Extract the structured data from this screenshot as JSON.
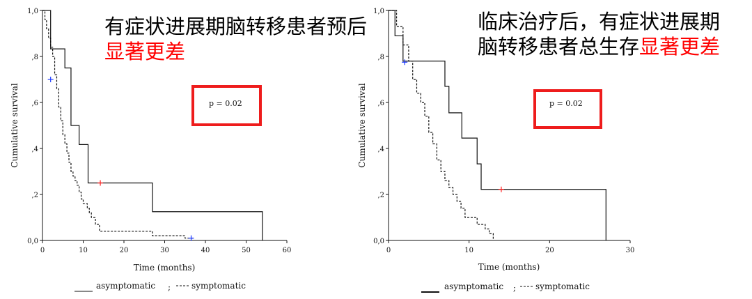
{
  "chart_data": [
    {
      "type": "line",
      "title": "有症状进展期脑转移患者预后",
      "title_highlight": "显著更差",
      "xlabel": "Time (months)",
      "ylabel": "Cumulative survival",
      "xlim": [
        0,
        60
      ],
      "ylim": [
        0,
        1
      ],
      "x_ticks": [
        "0",
        "10",
        "20",
        "30",
        "40",
        "50",
        "60"
      ],
      "y_ticks": [
        "0,0",
        ",2",
        ",4",
        ",6",
        ",8",
        "1,0"
      ],
      "annotation": "p = 0.02",
      "legend": {
        "asym": "asymptomatic",
        "sep": ";",
        "sym": "symptomatic"
      },
      "series": [
        {
          "name": "asymptomatic",
          "style": "solid",
          "steps": [
            [
              0,
              1.0
            ],
            [
              2,
              0.833
            ],
            [
              5.5,
              0.75
            ],
            [
              7,
              0.5
            ],
            [
              9,
              0.417
            ],
            [
              11.2,
              0.25
            ],
            [
              27,
              0.125
            ],
            [
              54,
              0.0
            ]
          ],
          "end_x": 54,
          "censored": [
            [
              14.2,
              0.25
            ]
          ]
        },
        {
          "name": "symptomatic",
          "style": "dashed",
          "steps": [
            [
              0,
              1.0
            ],
            [
              0.6,
              0.96
            ],
            [
              1.0,
              0.92
            ],
            [
              1.5,
              0.88
            ],
            [
              2.0,
              0.84
            ],
            [
              2.5,
              0.8
            ],
            [
              3.0,
              0.72
            ],
            [
              3.5,
              0.66
            ],
            [
              4.0,
              0.58
            ],
            [
              4.5,
              0.52
            ],
            [
              5.0,
              0.46
            ],
            [
              5.5,
              0.42
            ],
            [
              6.0,
              0.38
            ],
            [
              6.5,
              0.34
            ],
            [
              7.0,
              0.3
            ],
            [
              7.5,
              0.28
            ],
            [
              8.0,
              0.26
            ],
            [
              8.5,
              0.24
            ],
            [
              9.0,
              0.21
            ],
            [
              9.5,
              0.18
            ],
            [
              10.0,
              0.16
            ],
            [
              11.0,
              0.14
            ],
            [
              11.5,
              0.12
            ],
            [
              12.0,
              0.1
            ],
            [
              13.0,
              0.07
            ],
            [
              14.0,
              0.04
            ],
            [
              27.0,
              0.02
            ],
            [
              35.0,
              0.01
            ]
          ],
          "end_x": 37,
          "censored": [
            [
              2.0,
              0.7
            ],
            [
              36.5,
              0.01
            ]
          ]
        }
      ]
    },
    {
      "type": "line",
      "title": "临床治疗后，有症状进展期脑转移患者总生存",
      "title_highlight": "显著更差",
      "xlabel": "Time (months)",
      "ylabel": "Cumulative survival",
      "xlim": [
        0,
        30
      ],
      "ylim": [
        0,
        1
      ],
      "x_ticks": [
        "0",
        "10",
        "20",
        "30"
      ],
      "y_ticks": [
        "0,0",
        ",2",
        ",4",
        ",6",
        ",8",
        "1,0"
      ],
      "annotation": "p = 0.02",
      "legend": {
        "asym": "asymptomatic",
        "sep": ";",
        "sym": "symptomatic"
      },
      "series": [
        {
          "name": "asymptomatic",
          "style": "solid",
          "steps": [
            [
              0,
              1.0
            ],
            [
              0.8,
              0.89
            ],
            [
              1.8,
              0.78
            ],
            [
              7.0,
              0.67
            ],
            [
              7.5,
              0.555
            ],
            [
              9.1,
              0.445
            ],
            [
              11.0,
              0.333
            ],
            [
              11.5,
              0.222
            ],
            [
              27,
              0.0
            ]
          ],
          "end_x": 27,
          "censored": [
            [
              14.0,
              0.222
            ]
          ]
        },
        {
          "name": "symptomatic",
          "style": "dashed",
          "steps": [
            [
              0,
              1.0
            ],
            [
              1.0,
              0.93
            ],
            [
              1.8,
              0.85
            ],
            [
              2.5,
              0.78
            ],
            [
              3.0,
              0.7
            ],
            [
              3.5,
              0.64
            ],
            [
              4.0,
              0.6
            ],
            [
              4.5,
              0.54
            ],
            [
              5.0,
              0.47
            ],
            [
              5.5,
              0.42
            ],
            [
              6.0,
              0.35
            ],
            [
              6.5,
              0.3
            ],
            [
              7.0,
              0.26
            ],
            [
              7.5,
              0.23
            ],
            [
              8.0,
              0.2
            ],
            [
              8.5,
              0.17
            ],
            [
              9.0,
              0.14
            ],
            [
              9.5,
              0.1
            ],
            [
              10.0,
              0.1
            ],
            [
              11.0,
              0.07
            ],
            [
              12.0,
              0.05
            ],
            [
              12.5,
              0.03
            ],
            [
              13.0,
              0.0
            ]
          ],
          "end_x": 13,
          "censored": [
            [
              2.0,
              0.775
            ]
          ]
        }
      ]
    }
  ]
}
